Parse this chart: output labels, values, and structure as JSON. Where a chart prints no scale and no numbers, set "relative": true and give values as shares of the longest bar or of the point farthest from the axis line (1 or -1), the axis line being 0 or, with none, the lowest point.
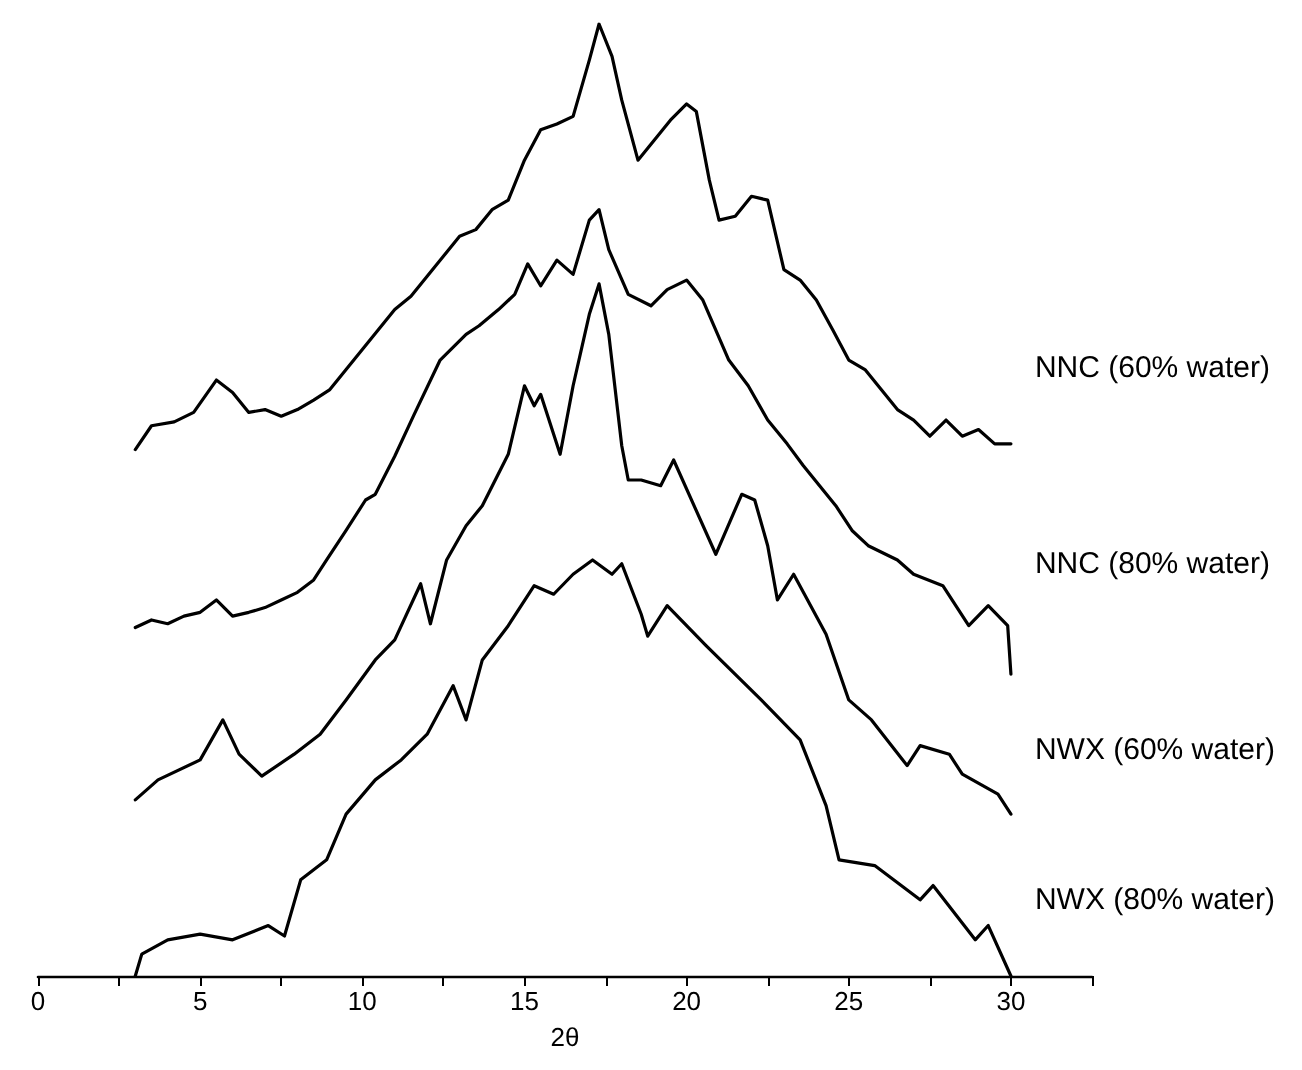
{
  "chart_data": {
    "type": "line",
    "xlabel": "2θ",
    "relative": true,
    "xlim": [
      0,
      32.5
    ],
    "xticks": [
      0,
      {
        "value": 2.5,
        "label": null
      },
      5,
      {
        "value": 7.5,
        "label": null
      },
      10,
      {
        "value": 12.5,
        "label": null
      },
      15,
      {
        "value": 17.5,
        "label": null
      },
      20,
      {
        "value": 22.5,
        "label": null
      },
      25,
      {
        "value": 27.5,
        "label": null
      },
      30,
      {
        "value": 32.5,
        "label": null
      }
    ],
    "series": [
      {
        "name": "NNC (60% water)",
        "color": "#000000",
        "x": [
          3.0,
          3.5,
          4.2,
          4.8,
          5.5,
          6.0,
          6.5,
          7.0,
          7.5,
          8.0,
          8.5,
          9.0,
          9.5,
          10.0,
          10.5,
          11.0,
          11.5,
          12.0,
          12.5,
          13.0,
          13.5,
          14.0,
          14.5,
          15.0,
          15.5,
          16.0,
          16.5,
          17.0,
          17.3,
          17.7,
          18.0,
          18.5,
          19.0,
          19.5,
          20.0,
          20.3,
          20.7,
          21.0,
          21.5,
          22.0,
          22.5,
          23.0,
          23.5,
          24.0,
          24.5,
          25.0,
          25.5,
          26.0,
          26.5,
          27.0,
          27.5,
          28.0,
          28.5,
          29.0,
          29.5,
          30.0
        ],
        "values": [
          0.553,
          0.578,
          0.582,
          0.592,
          0.626,
          0.613,
          0.592,
          0.595,
          0.588,
          0.595,
          0.605,
          0.616,
          0.637,
          0.658,
          0.679,
          0.7,
          0.714,
          0.735,
          0.756,
          0.777,
          0.784,
          0.805,
          0.815,
          0.857,
          0.889,
          0.895,
          0.903,
          0.962,
          1,
          0.966,
          0.92,
          0.857,
          0.878,
          0.899,
          0.916,
          0.908,
          0.836,
          0.794,
          0.798,
          0.819,
          0.815,
          0.742,
          0.731,
          0.71,
          0.679,
          0.647,
          0.637,
          0.616,
          0.595,
          0.584,
          0.567,
          0.584,
          0.567,
          0.574,
          0.559,
          0.559
        ]
      },
      {
        "name": "NNC (80% water)",
        "color": "#000000",
        "x": [
          3.0,
          3.5,
          4.0,
          4.5,
          5.0,
          5.5,
          6.0,
          6.5,
          7.0,
          7.5,
          8.0,
          8.5,
          8.9,
          9.5,
          10.1,
          10.4,
          11.0,
          11.6,
          12.4,
          13.2,
          13.6,
          14.2,
          14.7,
          15.1,
          15.5,
          16.0,
          16.5,
          17.0,
          17.3,
          17.6,
          18.2,
          18.9,
          19.4,
          20.0,
          20.5,
          21.3,
          21.9,
          22.5,
          23.1,
          23.6,
          24.1,
          24.6,
          25.1,
          25.6,
          26.5,
          27.0,
          27.9,
          28.7,
          29.3,
          29.9,
          30.0
        ],
        "values": [
          0.366,
          0.374,
          0.37,
          0.378,
          0.382,
          0.395,
          0.378,
          0.382,
          0.387,
          0.395,
          0.403,
          0.416,
          0.437,
          0.468,
          0.5,
          0.506,
          0.546,
          0.59,
          0.647,
          0.674,
          0.683,
          0.7,
          0.716,
          0.748,
          0.725,
          0.752,
          0.737,
          0.794,
          0.805,
          0.763,
          0.716,
          0.704,
          0.721,
          0.731,
          0.71,
          0.647,
          0.62,
          0.584,
          0.559,
          0.536,
          0.515,
          0.494,
          0.468,
          0.452,
          0.437,
          0.422,
          0.41,
          0.368,
          0.389,
          0.368,
          0.317
        ]
      },
      {
        "name": "NWX (60% water)",
        "color": "#000000",
        "x": [
          3.0,
          3.7,
          5.0,
          5.7,
          6.2,
          6.9,
          7.9,
          8.7,
          9.5,
          10.4,
          11.0,
          11.8,
          12.1,
          12.6,
          13.2,
          13.7,
          14.5,
          15.0,
          15.3,
          15.5,
          16.1,
          16.5,
          17.0,
          17.3,
          17.6,
          18.0,
          18.2,
          18.6,
          19.2,
          19.6,
          20.9,
          21.7,
          22.1,
          22.5,
          22.8,
          23.3,
          24.3,
          25.0,
          25.7,
          26.8,
          27.2,
          28.1,
          28.5,
          29.6,
          30.0
        ],
        "values": [
          0.185,
          0.206,
          0.227,
          0.269,
          0.233,
          0.21,
          0.233,
          0.254,
          0.29,
          0.332,
          0.353,
          0.412,
          0.37,
          0.437,
          0.473,
          0.494,
          0.548,
          0.62,
          0.599,
          0.611,
          0.548,
          0.62,
          0.695,
          0.727,
          0.674,
          0.557,
          0.521,
          0.521,
          0.515,
          0.542,
          0.443,
          0.506,
          0.5,
          0.452,
          0.395,
          0.422,
          0.359,
          0.29,
          0.269,
          0.221,
          0.242,
          0.233,
          0.212,
          0.191,
          0.17
        ]
      },
      {
        "name": "NWX (80% water)",
        "color": "#000000",
        "x": [
          3.0,
          3.2,
          4.0,
          5.0,
          6.0,
          7.1,
          7.6,
          8.1,
          8.9,
          9.5,
          10.4,
          11.2,
          12.0,
          12.8,
          13.2,
          13.7,
          14.5,
          15.3,
          15.9,
          16.5,
          17.1,
          17.7,
          18.0,
          18.6,
          18.8,
          19.4,
          20.6,
          22.3,
          23.5,
          24.3,
          24.7,
          25.8,
          27.2,
          27.6,
          28.9,
          29.3,
          30.0
        ],
        "values": [
          0,
          0.023,
          0.038,
          0.044,
          0.038,
          0.053,
          0.042,
          0.101,
          0.122,
          0.17,
          0.206,
          0.227,
          0.254,
          0.305,
          0.269,
          0.332,
          0.368,
          0.41,
          0.401,
          0.422,
          0.437,
          0.422,
          0.433,
          0.38,
          0.357,
          0.389,
          0.347,
          0.29,
          0.248,
          0.179,
          0.122,
          0.116,
          0.08,
          0.095,
          0.038,
          0.053,
          0
        ]
      }
    ]
  }
}
